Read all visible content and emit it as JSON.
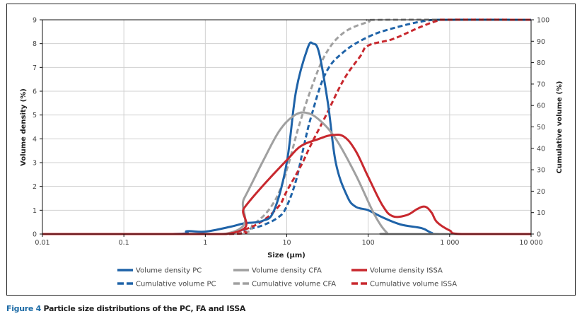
{
  "caption": {
    "figure_label": "Figure 4",
    "text": "Particle size distributions of the PC, FA and ISSA"
  },
  "chart_data": {
    "type": "line",
    "title": "",
    "xlabel": "Size (µm)",
    "ylabel": "Volume density (%)",
    "y2label": "Cumulative volume (%)",
    "xscale": "log",
    "xlim": [
      0.01,
      10000
    ],
    "ylim": [
      0,
      9
    ],
    "y2lim": [
      0,
      100
    ],
    "grid": true,
    "legend_position": "bottom",
    "x_ticks": [
      0.01,
      0.1,
      1,
      10,
      100,
      1000,
      10000
    ],
    "x_tick_labels": [
      "0.01",
      "0.1",
      "1",
      "10",
      "100",
      "1 000",
      "10 000"
    ],
    "y_ticks": [
      0,
      1,
      2,
      3,
      4,
      5,
      6,
      7,
      8,
      9
    ],
    "y_tick_labels": [
      "0",
      "1",
      "2",
      "3",
      "4",
      "5",
      "6",
      "7",
      "8",
      "9"
    ],
    "y2_ticks": [
      0,
      10,
      20,
      30,
      40,
      50,
      60,
      70,
      80,
      90,
      100
    ],
    "y2_tick_labels": [
      "0",
      "10",
      "20",
      "30",
      "40",
      "50",
      "60",
      "70",
      "80",
      "90",
      "100"
    ],
    "series": [
      {
        "name": "Volume density PC",
        "axis": "left",
        "style": "solid",
        "color": "#1f63a8",
        "x": [
          0.01,
          0.4,
          0.6,
          1,
          2,
          3,
          5,
          7,
          10,
          13,
          18,
          21,
          25,
          32,
          40,
          55,
          70,
          100,
          150,
          250,
          450,
          600,
          800,
          10000
        ],
        "y": [
          0,
          0,
          0.12,
          0.1,
          0.3,
          0.45,
          0.55,
          1.0,
          3.0,
          6.0,
          7.8,
          8.0,
          7.6,
          5.5,
          3.0,
          1.6,
          1.15,
          1.0,
          0.7,
          0.4,
          0.25,
          0.05,
          0,
          0
        ]
      },
      {
        "name": "Volume density CFA",
        "axis": "left",
        "style": "solid",
        "color": "#a0a0a0",
        "x": [
          0.01,
          1.7,
          3,
          5,
          8,
          12,
          17,
          25,
          40,
          70,
          120,
          170,
          200,
          10000
        ],
        "y": [
          0,
          0,
          1.5,
          3.0,
          4.3,
          4.95,
          5.1,
          4.8,
          4.0,
          2.5,
          0.8,
          0.05,
          0,
          0
        ]
      },
      {
        "name": "Volume density ISSA",
        "axis": "left",
        "style": "solid",
        "color": "#c8282e",
        "x": [
          0.01,
          1.8,
          3,
          5,
          10,
          15,
          25,
          35,
          50,
          70,
          100,
          150,
          200,
          300,
          400,
          500,
          600,
          700,
          1000,
          1400,
          10000
        ],
        "y": [
          0,
          0,
          1.1,
          2.0,
          3.1,
          3.7,
          4.0,
          4.15,
          4.1,
          3.5,
          2.4,
          1.2,
          0.75,
          0.8,
          1.05,
          1.15,
          0.9,
          0.5,
          0.15,
          0,
          0
        ]
      },
      {
        "name": "Cumulative volume PC",
        "axis": "right",
        "style": "dashed",
        "color": "#1f63a8",
        "x": [
          0.01,
          1.5,
          3,
          5,
          8,
          10,
          13,
          16,
          20,
          30,
          50,
          100,
          200,
          500,
          1000,
          10000
        ],
        "y": [
          0,
          0,
          2,
          4,
          8,
          13,
          25,
          40,
          55,
          75,
          85,
          92,
          96,
          99.5,
          100,
          100
        ]
      },
      {
        "name": "Cumulative volume CFA",
        "axis": "right",
        "style": "dashed",
        "color": "#a0a0a0",
        "x": [
          0.01,
          1.8,
          4,
          7,
          10,
          14,
          20,
          30,
          50,
          100,
          150,
          10000
        ],
        "y": [
          0,
          0,
          5,
          15,
          30,
          50,
          68,
          84,
          94,
          99,
          100,
          100
        ]
      },
      {
        "name": "Cumulative volume ISSA",
        "axis": "right",
        "style": "dashed",
        "color": "#c8282e",
        "x": [
          0.01,
          1.8,
          3,
          5,
          8,
          10,
          15,
          20,
          30,
          50,
          80,
          100,
          200,
          400,
          700,
          1000,
          10000
        ],
        "y": [
          0,
          0,
          2,
          6,
          13,
          20,
          32,
          42,
          55,
          72,
          83,
          88,
          91,
          96,
          99.5,
          100,
          100
        ]
      }
    ]
  }
}
